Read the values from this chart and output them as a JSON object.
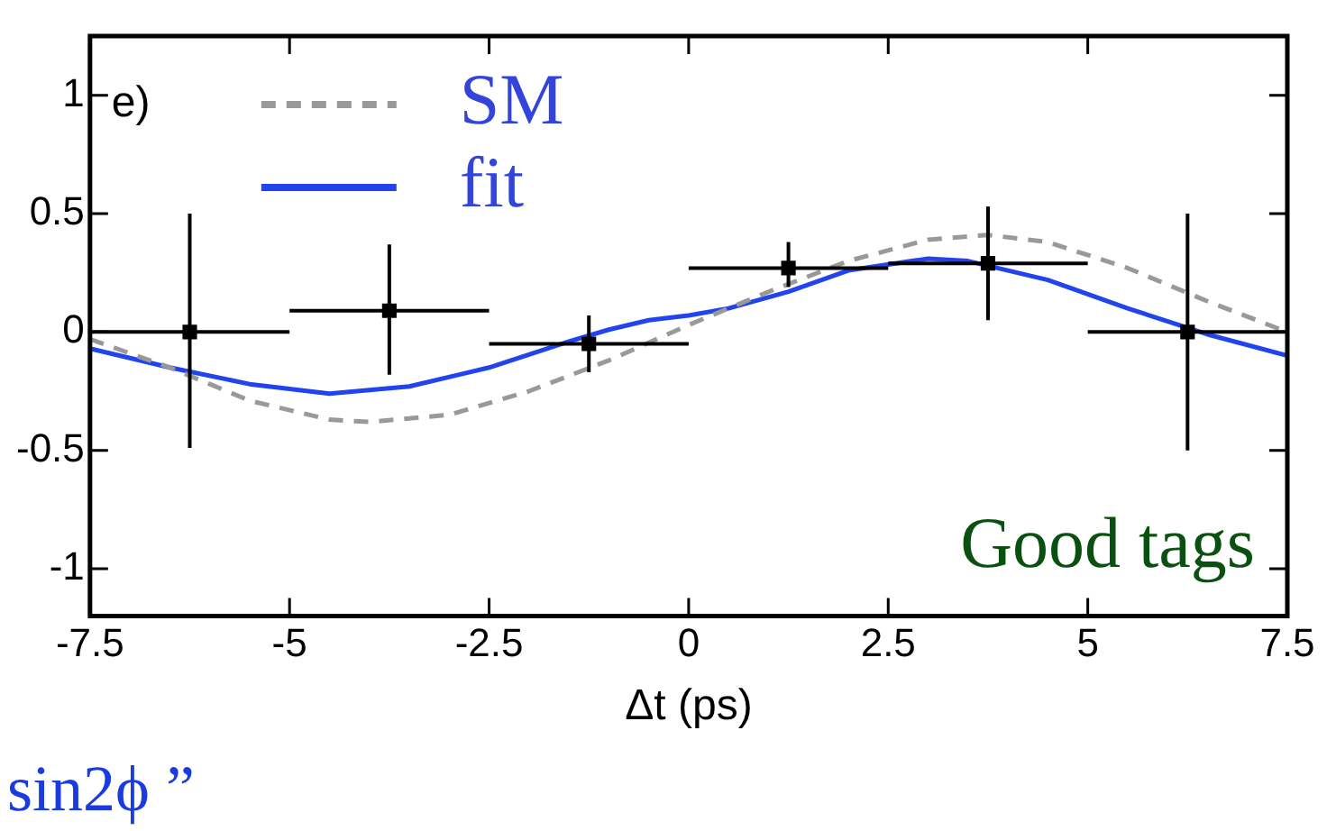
{
  "chart_data": {
    "type": "scatter",
    "xlabel": "Δt (ps)",
    "xlim": [
      -7.5,
      7.5
    ],
    "xticks": [
      -7.5,
      -5,
      -2.5,
      0,
      2.5,
      5,
      7.5
    ],
    "ylim": [
      -1.2,
      1.25
    ],
    "yticks": [
      -1,
      -0.5,
      0,
      0.5,
      1
    ],
    "grid": false,
    "legend": "top left",
    "marker": "square",
    "annotations": [
      "e)",
      "Good tags",
      "sin2ϕ ”"
    ],
    "series": [
      {
        "color": "#000000",
        "x": [
          -6.25,
          -3.75,
          -1.25,
          1.25,
          3.75,
          6.25
        ],
        "values": [
          0,
          0.09,
          -0.05,
          0.27,
          0.29,
          0
        ],
        "errors": [
          [
            -0.49,
            0.5
          ],
          [
            -0.18,
            0.37
          ],
          [
            -0.17,
            0.07
          ],
          [
            0.19,
            0.38
          ],
          [
            0.05,
            0.53
          ],
          [
            -0.5,
            0.5
          ]
        ],
        "xerrors": [
          1.25,
          1.25,
          1.25,
          1.25,
          1.25,
          1.25
        ]
      },
      {
        "type": "line",
        "name": "SM",
        "color": "#999999",
        "line_style": "dashed",
        "marker": "none",
        "x": [
          -7.5,
          -6.5,
          -5.5,
          -4.5,
          -4,
          -3,
          -2,
          -1,
          0,
          1,
          2,
          3,
          3.75,
          4.5,
          5.5,
          6.5,
          7.5
        ],
        "values": [
          -0.03,
          -0.15,
          -0.29,
          -0.37,
          -0.38,
          -0.35,
          -0.25,
          -0.12,
          0.03,
          0.17,
          0.3,
          0.39,
          0.41,
          0.38,
          0.27,
          0.13,
          0.0
        ]
      },
      {
        "type": "line",
        "name": "fit",
        "color": "#2244ee",
        "line_style": "solid",
        "marker": "none",
        "x": [
          -7.5,
          -6.5,
          -5.5,
          -4.5,
          -3.5,
          -2.5,
          -1.5,
          -1,
          -0.5,
          0,
          0.5,
          1.25,
          2,
          3,
          3.5,
          4.5,
          5.5,
          6.5,
          7.5
        ],
        "values": [
          -0.07,
          -0.15,
          -0.22,
          -0.26,
          -0.23,
          -0.15,
          -0.04,
          0.01,
          0.05,
          0.07,
          0.1,
          0.17,
          0.26,
          0.31,
          0.3,
          0.22,
          0.1,
          -0.01,
          -0.1
        ]
      }
    ]
  }
}
